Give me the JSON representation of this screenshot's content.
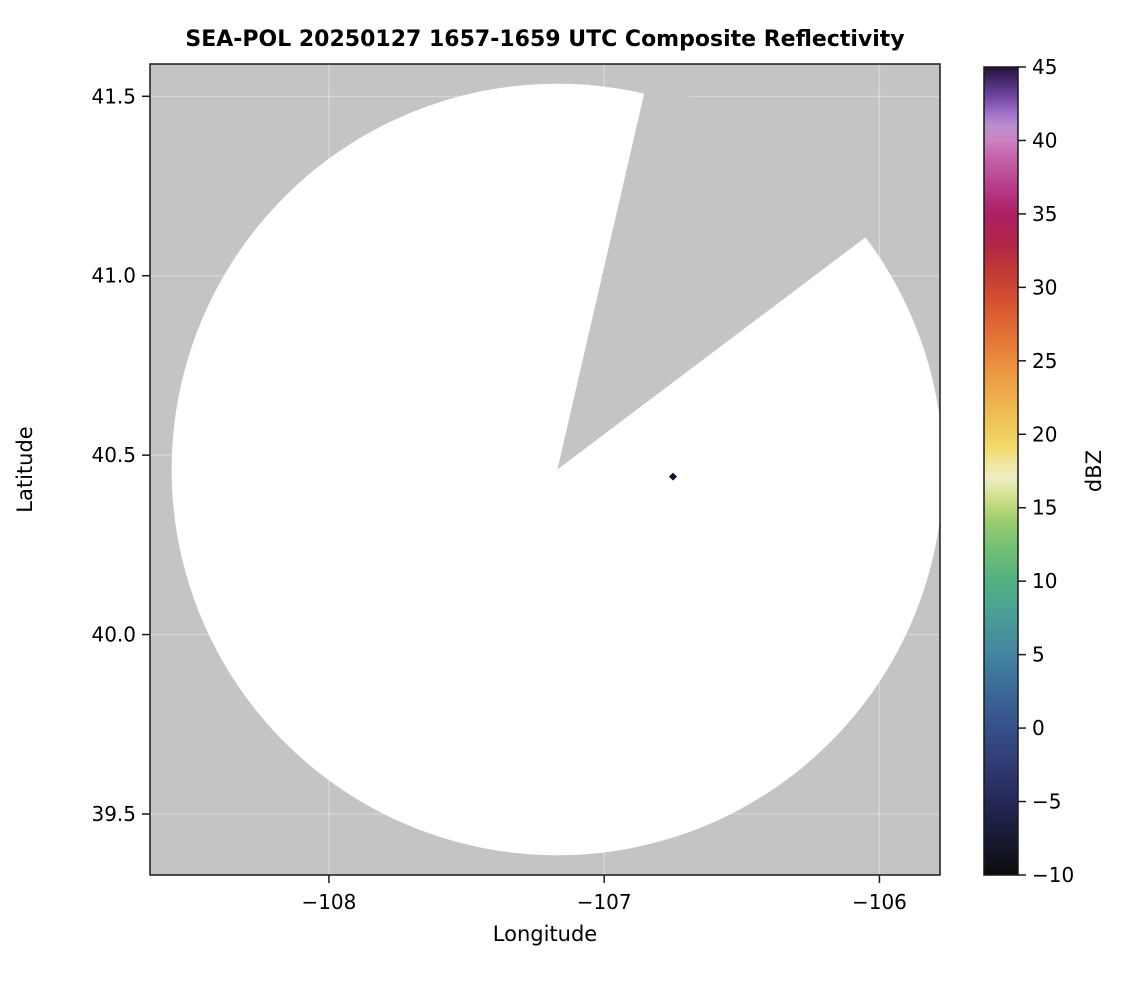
{
  "chart_data": {
    "type": "heatmap",
    "title": "SEA-POL 20250127 1657-1659 UTC Composite Reflectivity",
    "xlabel": "Longitude",
    "ylabel": "Latitude",
    "xlim": [
      -108.65,
      -105.78
    ],
    "ylim": [
      39.33,
      41.59
    ],
    "x_ticks": [
      {
        "value": -108,
        "label": "−108"
      },
      {
        "value": -107,
        "label": "−107"
      },
      {
        "value": -106,
        "label": "−106"
      }
    ],
    "y_ticks": [
      {
        "value": 41.5,
        "label": "41.5"
      },
      {
        "value": 41.0,
        "label": "41.0"
      },
      {
        "value": 40.5,
        "label": "40.5"
      },
      {
        "value": 40.0,
        "label": "40.0"
      },
      {
        "value": 39.5,
        "label": "39.5"
      }
    ],
    "grid": true,
    "plot_bg": "#c4c4c4",
    "coverage": {
      "fill": "#ffffff",
      "center": {
        "lon": -107.17,
        "lat": 40.46
      },
      "radius_lat_deg": 1.075,
      "blocked_sector": {
        "start_az_deg": 13,
        "end_az_deg": 53
      }
    },
    "echoes": [
      {
        "lon": -106.75,
        "lat": 40.44,
        "dbz": -7,
        "color": "#14142e"
      }
    ],
    "colorbar": {
      "label": "dBZ",
      "min": -10,
      "max": 45,
      "ticks": [
        {
          "value": 45,
          "label": "45"
        },
        {
          "value": 40,
          "label": "40"
        },
        {
          "value": 35,
          "label": "35"
        },
        {
          "value": 30,
          "label": "30"
        },
        {
          "value": 25,
          "label": "25"
        },
        {
          "value": 20,
          "label": "20"
        },
        {
          "value": 15,
          "label": "15"
        },
        {
          "value": 10,
          "label": "10"
        },
        {
          "value": 5,
          "label": "5"
        },
        {
          "value": 0,
          "label": "0"
        },
        {
          "value": -5,
          "label": "−5"
        },
        {
          "value": -10,
          "label": "−10"
        }
      ],
      "stops": [
        {
          "value": -10,
          "color": "#0a0a0c"
        },
        {
          "value": -8,
          "color": "#16182c"
        },
        {
          "value": -6,
          "color": "#20224a"
        },
        {
          "value": -4,
          "color": "#2a2f63"
        },
        {
          "value": -2,
          "color": "#323f77"
        },
        {
          "value": 0,
          "color": "#36508a"
        },
        {
          "value": 2,
          "color": "#3a6396"
        },
        {
          "value": 5,
          "color": "#4284a0"
        },
        {
          "value": 8,
          "color": "#4aa195"
        },
        {
          "value": 10,
          "color": "#52b183"
        },
        {
          "value": 12,
          "color": "#6fbe74"
        },
        {
          "value": 14,
          "color": "#97cb70"
        },
        {
          "value": 15,
          "color": "#b9d878"
        },
        {
          "value": 16,
          "color": "#d9e49a"
        },
        {
          "value": 17,
          "color": "#efecc1"
        },
        {
          "value": 18,
          "color": "#f2e7a0"
        },
        {
          "value": 19,
          "color": "#f2da6e"
        },
        {
          "value": 21,
          "color": "#f0c254"
        },
        {
          "value": 23,
          "color": "#eda849"
        },
        {
          "value": 25,
          "color": "#e98c3e"
        },
        {
          "value": 27,
          "color": "#e26e36"
        },
        {
          "value": 29,
          "color": "#d55130"
        },
        {
          "value": 31,
          "color": "#c23a36"
        },
        {
          "value": 33,
          "color": "#b02548"
        },
        {
          "value": 35,
          "color": "#ad2065"
        },
        {
          "value": 37,
          "color": "#b83f8c"
        },
        {
          "value": 39,
          "color": "#c566ae"
        },
        {
          "value": 40,
          "color": "#cb83c1"
        },
        {
          "value": 41,
          "color": "#bc8ed2"
        },
        {
          "value": 42,
          "color": "#9a6cc3"
        },
        {
          "value": 43,
          "color": "#6f46a0"
        },
        {
          "value": 44,
          "color": "#4a2a72"
        },
        {
          "value": 45,
          "color": "#231138"
        }
      ]
    }
  }
}
